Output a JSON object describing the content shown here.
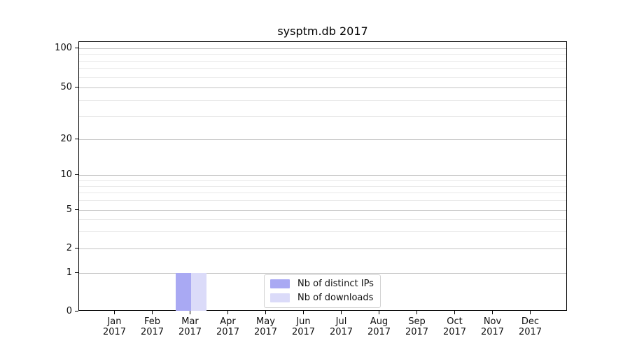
{
  "title": "sysptm.db 2017",
  "chart_data": {
    "type": "bar",
    "title": "sysptm.db 2017",
    "categories": [
      "Jan 2017",
      "Feb 2017",
      "Mar 2017",
      "Apr 2017",
      "May 2017",
      "Jun 2017",
      "Jul 2017",
      "Aug 2017",
      "Sep 2017",
      "Oct 2017",
      "Nov 2017",
      "Dec 2017"
    ],
    "x_tick_line1": [
      "Jan",
      "Feb",
      "Mar",
      "Apr",
      "May",
      "Jun",
      "Jul",
      "Aug",
      "Sep",
      "Oct",
      "Nov",
      "Dec"
    ],
    "x_tick_line2": "2017",
    "series": [
      {
        "name": "Nb of distinct IPs",
        "color": "#a9a9f3",
        "values": [
          0,
          0,
          1,
          0,
          0,
          0,
          0,
          0,
          0,
          0,
          0,
          0
        ]
      },
      {
        "name": "Nb of downloads",
        "color": "#dbdbf9",
        "values": [
          0,
          0,
          1,
          0,
          0,
          0,
          0,
          0,
          0,
          0,
          0,
          0
        ]
      }
    ],
    "xlabel": "",
    "ylabel": "",
    "yscale": "symlog",
    "y_major_ticks": [
      0,
      1,
      2,
      5,
      10,
      20,
      50,
      100
    ],
    "y_minor_ticks": [
      3,
      4,
      6,
      7,
      8,
      9,
      30,
      40,
      60,
      70,
      80,
      90
    ],
    "ylim": [
      0,
      110
    ],
    "grid": "horizontal major and minor",
    "legend_position": "lower center inside axes"
  },
  "colors": {
    "background": "#ffffff",
    "spine": "#000000",
    "text": "#111111",
    "grid_major": "#c3c3c3",
    "grid_minor": "#e9e9e9",
    "legend_border": "#d2d2d2"
  }
}
